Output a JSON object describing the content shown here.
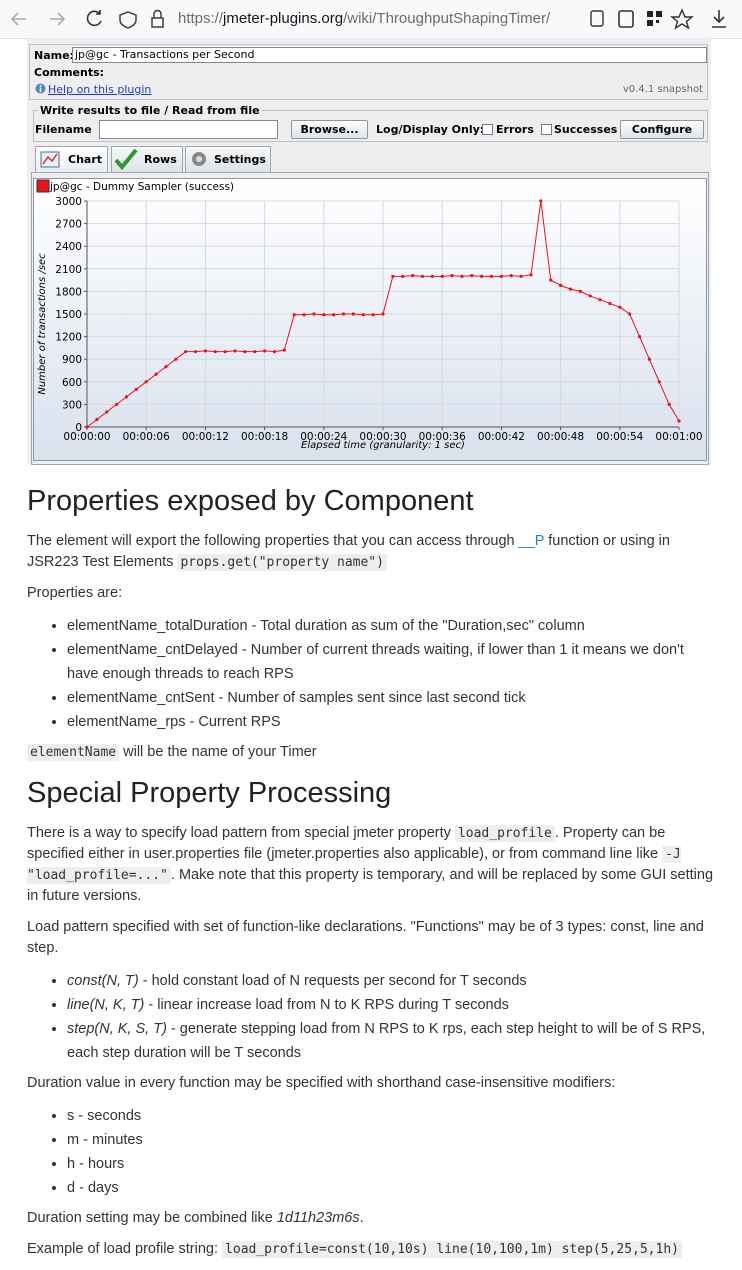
{
  "browser": {
    "url_scheme": "https://",
    "url_host": "jmeter-plugins.org",
    "url_path": "/wiki/ThroughputShapingTimer/"
  },
  "plugin_ui": {
    "name_label": "Name:",
    "name_value": "jp@gc - Transactions per Second",
    "comments_label": "Comments:",
    "help_link": "Help on this plugin",
    "version": "v0.4.1 snapshot",
    "file_group": "Write results to file / Read from file",
    "filename_label": "Filename",
    "browse": "Browse...",
    "log_display": "Log/Display Only:",
    "errors": "Errors",
    "successes": "Successes",
    "configure": "Configure",
    "tabs": [
      "Chart",
      "Rows",
      "Settings"
    ]
  },
  "chart_data": {
    "type": "line",
    "x_label": "Elapsed time (granularity: 1 sec)",
    "y_label": "Number of transactions /sec",
    "x": [
      0,
      1,
      2,
      3,
      4,
      5,
      6,
      7,
      8,
      9,
      10,
      11,
      12,
      13,
      14,
      15,
      16,
      17,
      18,
      19,
      20,
      21,
      22,
      23,
      24,
      25,
      26,
      27,
      28,
      29,
      30,
      31,
      32,
      33,
      34,
      35,
      36,
      37,
      38,
      39,
      40,
      41,
      42,
      43,
      44,
      45,
      46,
      47,
      48,
      49,
      50,
      51,
      52,
      53,
      54,
      55,
      56,
      57,
      58,
      59,
      60
    ],
    "series": [
      {
        "name": "jp@gc - Dummy Sampler (success)",
        "color": "#e8141a",
        "values": [
          0,
          100,
          200,
          300,
          400,
          500,
          600,
          700,
          800,
          900,
          1000,
          1000,
          1010,
          1000,
          1000,
          1010,
          1000,
          1000,
          1010,
          1000,
          1020,
          1490,
          1490,
          1500,
          1490,
          1490,
          1500,
          1500,
          1490,
          1490,
          1500,
          2000,
          2000,
          2010,
          2000,
          2000,
          2000,
          2010,
          2000,
          2010,
          2000,
          2000,
          2000,
          2010,
          2000,
          2020,
          3000,
          1950,
          1880,
          1830,
          1800,
          1740,
          1690,
          1640,
          1590,
          1500,
          1200,
          900,
          600,
          300,
          80
        ]
      }
    ],
    "xlim": [
      0,
      60
    ],
    "ylim": [
      0,
      3000
    ],
    "xticks": [
      {
        "value": 0,
        "label": "00:00:00"
      },
      {
        "value": 6,
        "label": "00:00:06"
      },
      {
        "value": 12,
        "label": "00:00:12"
      },
      {
        "value": 18,
        "label": "00:00:18"
      },
      {
        "value": 24,
        "label": "00:00:24"
      },
      {
        "value": 30,
        "label": "00:00:30"
      },
      {
        "value": 36,
        "label": "00:00:36"
      },
      {
        "value": 42,
        "label": "00:00:42"
      },
      {
        "value": 48,
        "label": "00:00:48"
      },
      {
        "value": 54,
        "label": "00:00:54"
      },
      {
        "value": 60,
        "label": "00:01:00"
      }
    ],
    "yticks": [
      0,
      300,
      600,
      900,
      1200,
      1500,
      1800,
      2100,
      2400,
      2700,
      3000
    ],
    "grid": true
  },
  "content": {
    "blocks": [
      {
        "heading": "Properties exposed by Component"
      },
      {
        "paragraph": [
          {
            "text": "The element will export the following properties that you can access through "
          },
          {
            "link": "__P"
          },
          {
            "text": " function or using in JSR223 Test Elements "
          },
          {
            "code": "props.get(\"property name\")"
          }
        ]
      },
      {
        "paragraph": [
          {
            "text": "Properties are:"
          }
        ]
      },
      {
        "list": [
          [
            {
              "text": "elementName_totalDuration - Total duration as sum of the \"Duration,sec\" column"
            }
          ],
          [
            {
              "text": "elementName_cntDelayed - Number of current threads waiting, if lower than 1 it means we don't have enough threads to reach RPS"
            }
          ],
          [
            {
              "text": "elementName_cntSent - Number of samples sent since last second tick"
            }
          ],
          [
            {
              "text": "elementName_rps - Current RPS"
            }
          ]
        ]
      },
      {
        "paragraph": [
          {
            "code": "elementName"
          },
          {
            "text": " will be the name of your Timer"
          }
        ]
      },
      {
        "heading": "Special Property Processing"
      },
      {
        "paragraph": [
          {
            "text": "There is a way to specify load pattern from special jmeter property "
          },
          {
            "code": "load_profile"
          },
          {
            "text": ". Property can be specified either in user.properties file (jmeter.properties also applicable), or from command line like "
          },
          {
            "code": "-J \"load_profile=...\""
          },
          {
            "text": ". Make note that this property is temporary, and will be replaced by some GUI setting in future versions."
          }
        ]
      },
      {
        "paragraph": [
          {
            "text": "Load pattern specified with set of function-like declarations. \"Functions\" may be of 3 types: const, line and step."
          }
        ]
      },
      {
        "list": [
          [
            {
              "em": "const(N, T)"
            },
            {
              "text": " - hold constant load of N requests per second for T seconds"
            }
          ],
          [
            {
              "em": "line(N, K, T)"
            },
            {
              "text": " - linear increase load from N to K RPS during T seconds"
            }
          ],
          [
            {
              "em": "step(N, K, S, T)"
            },
            {
              "text": " - generate stepping load from N RPS to K rps, each step height to will be of S RPS, each step duration will be T seconds"
            }
          ]
        ]
      },
      {
        "paragraph": [
          {
            "text": "Duration value in every function may be specified with shorthand case-insensitive modifiers:"
          }
        ]
      },
      {
        "list": [
          [
            {
              "text": "s - seconds"
            }
          ],
          [
            {
              "text": "m - minutes"
            }
          ],
          [
            {
              "text": "h - hours"
            }
          ],
          [
            {
              "text": "d - days"
            }
          ]
        ]
      },
      {
        "paragraph": [
          {
            "text": "Duration setting may be combined like "
          },
          {
            "em": "1d11h23m6s"
          },
          {
            "text": "."
          }
        ]
      },
      {
        "paragraph": [
          {
            "text": "Example of load profile string: "
          },
          {
            "code": "load_profile=const(10,10s) line(10,100,1m) step(5,25,5,1h)"
          }
        ]
      }
    ]
  }
}
